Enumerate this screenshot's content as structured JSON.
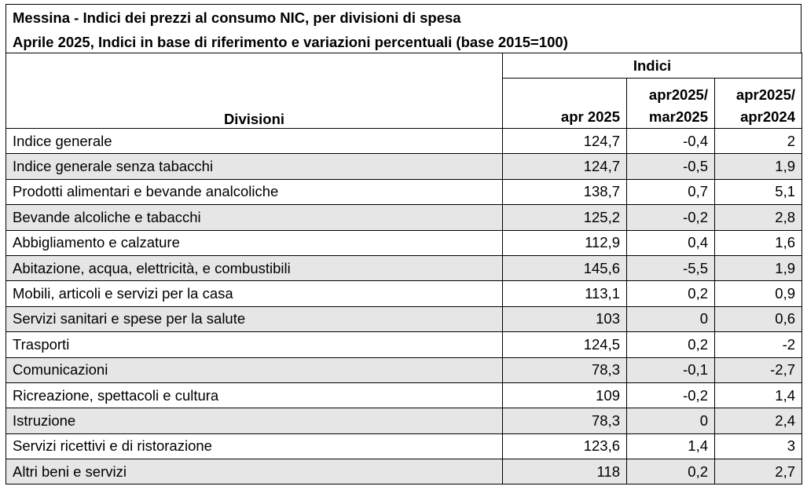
{
  "title": {
    "line1": "Messina - Indici dei prezzi al consumo NIC, per divisioni di spesa",
    "line2": "Aprile 2025, Indici in base di riferimento e variazioni percentuali (base 2015=100)"
  },
  "header": {
    "divisions": "Divisioni",
    "group": "Indici",
    "col_apr": "apr 2025",
    "col_mom_a": "apr2025/",
    "col_mom_b": "mar2025",
    "col_yoy_a": "apr2025/",
    "col_yoy_b": "apr2024"
  },
  "rows": [
    {
      "label": "Indice generale",
      "index": "124,7",
      "mom": "-0,4",
      "yoy": "2"
    },
    {
      "label": "Indice generale senza tabacchi",
      "index": "124,7",
      "mom": "-0,5",
      "yoy": "1,9"
    },
    {
      "label": "Prodotti alimentari e bevande analcoliche",
      "index": "138,7",
      "mom": "0,7",
      "yoy": "5,1"
    },
    {
      "label": "Bevande alcoliche e tabacchi",
      "index": "125,2",
      "mom": "-0,2",
      "yoy": "2,8"
    },
    {
      "label": "Abbigliamento e calzature",
      "index": "112,9",
      "mom": "0,4",
      "yoy": "1,6"
    },
    {
      "label": "Abitazione, acqua, elettricità, e combustibili",
      "index": "145,6",
      "mom": "-5,5",
      "yoy": "1,9"
    },
    {
      "label": "Mobili, articoli e servizi per la casa",
      "index": "113,1",
      "mom": "0,2",
      "yoy": "0,9"
    },
    {
      "label": "Servizi sanitari e spese per la salute",
      "index": "103",
      "mom": "0",
      "yoy": "0,6"
    },
    {
      "label": "Trasporti",
      "index": "124,5",
      "mom": "0,2",
      "yoy": "-2"
    },
    {
      "label": "Comunicazioni",
      "index": "78,3",
      "mom": "-0,1",
      "yoy": "-2,7"
    },
    {
      "label": "Ricreazione, spettacoli e cultura",
      "index": "109",
      "mom": "-0,2",
      "yoy": "1,4"
    },
    {
      "label": "Istruzione",
      "index": "78,3",
      "mom": "0",
      "yoy": "2,4"
    },
    {
      "label": "Servizi ricettivi e di ristorazione",
      "index": "123,6",
      "mom": "1,4",
      "yoy": "3"
    },
    {
      "label": "Altri beni e servizi",
      "index": "118",
      "mom": "0,2",
      "yoy": "2,7"
    }
  ],
  "colors": {
    "shaded_row": "#e6e6e6",
    "border": "#000000"
  }
}
